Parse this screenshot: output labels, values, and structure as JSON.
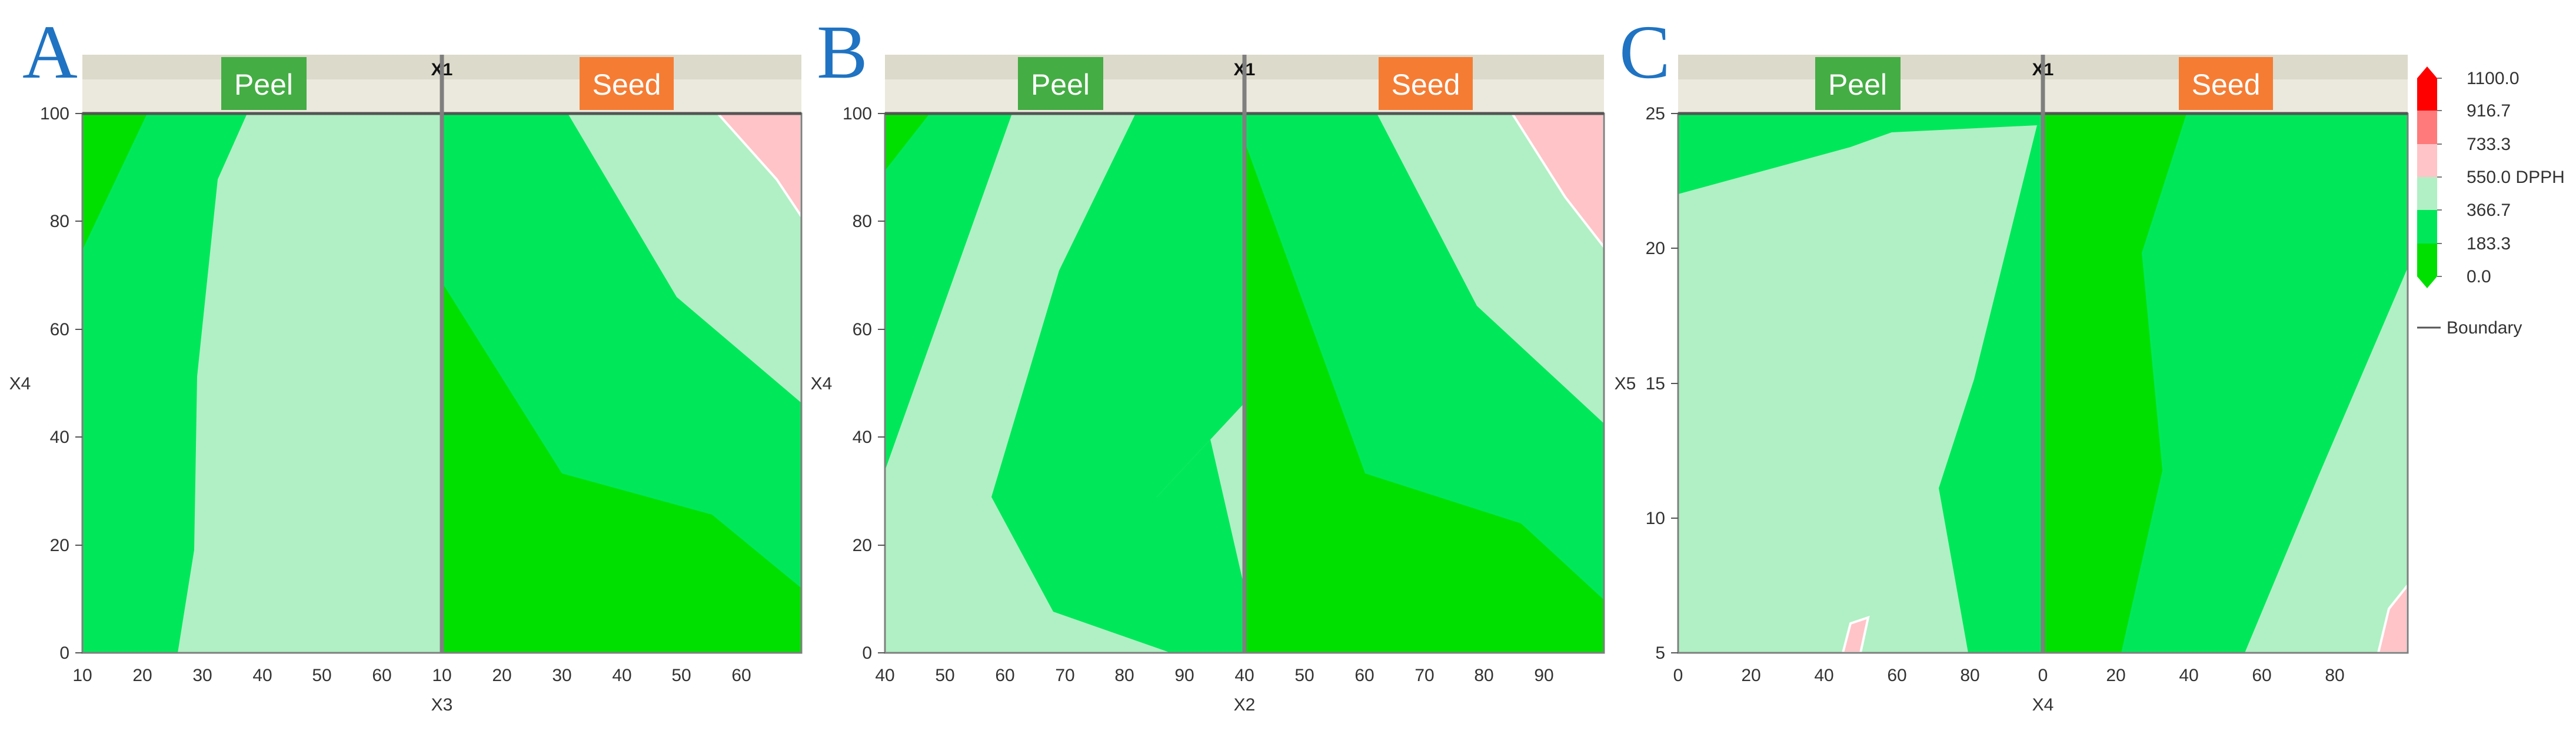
{
  "colors": {
    "band_0_183": "#00e000",
    "band_183_367": "#00e85a",
    "band_367_550": "#b0f0c4",
    "band_550_733": "#ffc4c8",
    "band_733_917": "#ff7a7a",
    "band_917_1100": "#ff0000",
    "peel_label_bg": "#44ad44",
    "seed_label_bg": "#f57c33",
    "strip_bg": "#dcdaca",
    "strip_bg_light": "#ebe9dd",
    "frame": "#7f7f7f",
    "panel_letter": "#1f73c2"
  },
  "chart_data": [
    {
      "type": "contour",
      "panel_letter": "A",
      "facet_title": "X1",
      "facets": [
        "Peel",
        "Seed"
      ],
      "xlabel": "X3",
      "ylabel": "X4",
      "ylim": [
        0,
        100
      ],
      "yticks": [
        "0",
        "20",
        "40",
        "60",
        "80",
        "100"
      ],
      "facet_xlim": [
        [
          10,
          70
        ],
        [
          10,
          70
        ]
      ],
      "xticks": [
        [
          "10",
          "20",
          "30",
          "40",
          "50",
          "60"
        ],
        [
          "10",
          "20",
          "30",
          "40",
          "50",
          "60"
        ]
      ],
      "facet_ranges": [
        {
          "facet": "Peel",
          "levels_present": [
            "0–183.3",
            "183.3–366.7",
            "366.7–550"
          ]
        },
        {
          "facet": "Seed",
          "levels_present": [
            "0–183.3",
            "183.3–366.7",
            "366.7–550",
            "550–733.3"
          ]
        }
      ]
    },
    {
      "type": "contour",
      "panel_letter": "B",
      "facet_title": "X1",
      "facets": [
        "Peel",
        "Seed"
      ],
      "xlabel": "X2",
      "ylabel": "X4",
      "ylim": [
        0,
        100
      ],
      "yticks": [
        "0",
        "20",
        "40",
        "60",
        "80",
        "100"
      ],
      "facet_xlim": [
        [
          40,
          100
        ],
        [
          40,
          100
        ]
      ],
      "xticks": [
        [
          "40",
          "50",
          "60",
          "70",
          "80",
          "90"
        ],
        [
          "40",
          "50",
          "60",
          "70",
          "80",
          "90"
        ]
      ],
      "facet_ranges": [
        {
          "facet": "Peel",
          "levels_present": [
            "0–183.3",
            "183.3–366.7",
            "366.7–550"
          ]
        },
        {
          "facet": "Seed",
          "levels_present": [
            "0–183.3",
            "183.3–366.7",
            "366.7–550",
            "550–733.3"
          ]
        }
      ]
    },
    {
      "type": "contour",
      "panel_letter": "C",
      "facet_title": "X1",
      "facets": [
        "Peel",
        "Seed"
      ],
      "xlabel": "X4",
      "ylabel": "X5",
      "ylim": [
        5,
        25
      ],
      "yticks": [
        "5",
        "10",
        "15",
        "20",
        "25"
      ],
      "facet_xlim": [
        [
          0,
          100
        ],
        [
          0,
          100
        ]
      ],
      "xticks": [
        [
          "0",
          "20",
          "40",
          "60",
          "80"
        ],
        [
          "0",
          "20",
          "40",
          "60",
          "80"
        ]
      ],
      "facet_ranges": [
        {
          "facet": "Peel",
          "levels_present": [
            "183.3–366.7",
            "366.7–550",
            "550–733.3"
          ]
        },
        {
          "facet": "Seed",
          "levels_present": [
            "0–183.3",
            "183.3–366.7",
            "366.7–550",
            "550–733.3"
          ]
        }
      ]
    }
  ],
  "legend": {
    "levels": [
      "1100.0",
      "916.7",
      "733.3",
      "550.0 DPPH",
      "366.7",
      "183.3",
      "0.0"
    ],
    "boundary_label": "Boundary"
  }
}
